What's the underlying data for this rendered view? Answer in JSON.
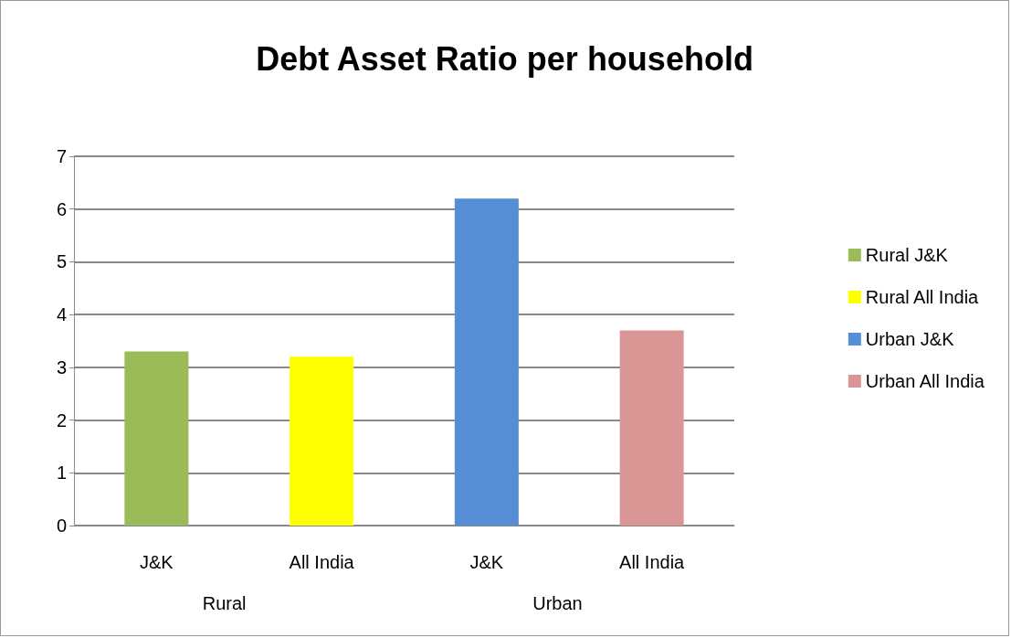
{
  "chart_data": {
    "type": "bar",
    "title": "Debt Asset Ratio per household",
    "categories": [
      "J&K",
      "All India",
      "J&K",
      "All India"
    ],
    "annotations": [
      "Rural",
      "Urban"
    ],
    "series": [
      {
        "name": "Rural J&K",
        "color": "#9bbb59",
        "values": [
          3.3,
          null,
          null,
          null
        ]
      },
      {
        "name": "Rural All India",
        "color": "#ffff00",
        "values": [
          null,
          3.2,
          null,
          null
        ]
      },
      {
        "name": "Urban J&K",
        "color": "#558ed5",
        "values": [
          null,
          null,
          6.2,
          null
        ]
      },
      {
        "name": "Urban All India",
        "color": "#d99694",
        "values": [
          null,
          null,
          null,
          3.7
        ]
      }
    ],
    "ylim": [
      0,
      7
    ],
    "yticks": [
      0,
      1,
      2,
      3,
      4,
      5,
      6,
      7
    ],
    "grid": true,
    "legend": "right"
  }
}
